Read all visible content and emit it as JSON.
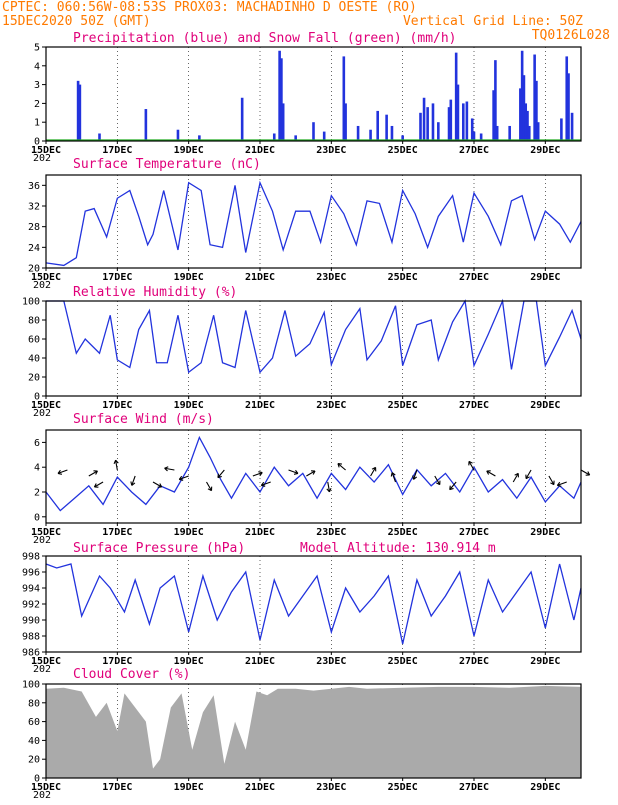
{
  "header": {
    "line1_left": "CPTEC:  060:56W-08:53S  PROX03: MACHADINHO D OESTE (RO)",
    "line2_left": "15DEC2020 50Z (GMT)",
    "line2_right": "Vertical Grid Line: 50Z",
    "line3_right": "TQ0126L028"
  },
  "colors": {
    "header": "#ff7a00",
    "title": "#e0007a",
    "series": "#2233dd",
    "snow": "#22aa22",
    "cloud": "#aaaaaa"
  },
  "x_axis": {
    "labels": [
      "15DEC",
      "17DEC",
      "19DEC",
      "21DEC",
      "23DEC",
      "25DEC",
      "27DEC",
      "29DEC"
    ],
    "sub_label": "202",
    "days": [
      15,
      17,
      19,
      21,
      23,
      25,
      27,
      29
    ],
    "range_days": [
      15,
      30
    ]
  },
  "chart_data": [
    {
      "type": "bar",
      "title": "Precipitation (blue) and Snow Fall (green) (mm/h)",
      "ylim": [
        0,
        5
      ],
      "yticks": [
        "0",
        "1",
        "2",
        "3",
        "4",
        "5"
      ],
      "series": [
        {
          "name": "Precipitation",
          "points": [
            [
              15.9,
              3.2
            ],
            [
              15.95,
              3.0
            ],
            [
              16.5,
              0.4
            ],
            [
              17.8,
              1.7
            ],
            [
              18.7,
              0.6
            ],
            [
              19.3,
              0.3
            ],
            [
              20.5,
              2.3
            ],
            [
              21.4,
              0.4
            ],
            [
              21.55,
              4.8
            ],
            [
              21.6,
              4.4
            ],
            [
              21.65,
              2.0
            ],
            [
              22.0,
              0.3
            ],
            [
              22.5,
              1.0
            ],
            [
              22.8,
              0.5
            ],
            [
              23.35,
              4.5
            ],
            [
              23.4,
              2.0
            ],
            [
              23.75,
              0.8
            ],
            [
              24.1,
              0.6
            ],
            [
              24.3,
              1.6
            ],
            [
              24.55,
              1.4
            ],
            [
              24.7,
              0.8
            ],
            [
              25.0,
              0.3
            ],
            [
              25.5,
              1.5
            ],
            [
              25.6,
              2.3
            ],
            [
              25.7,
              1.8
            ],
            [
              25.85,
              2.0
            ],
            [
              26.0,
              1.0
            ],
            [
              26.3,
              1.8
            ],
            [
              26.35,
              2.2
            ],
            [
              26.5,
              4.7
            ],
            [
              26.55,
              3.0
            ],
            [
              26.7,
              2.0
            ],
            [
              26.8,
              2.1
            ],
            [
              26.95,
              1.2
            ],
            [
              27.0,
              0.5
            ],
            [
              27.2,
              0.4
            ],
            [
              27.55,
              2.7
            ],
            [
              27.6,
              4.3
            ],
            [
              27.65,
              0.8
            ],
            [
              28.0,
              0.8
            ],
            [
              28.3,
              2.8
            ],
            [
              28.35,
              4.8
            ],
            [
              28.4,
              3.5
            ],
            [
              28.45,
              2.0
            ],
            [
              28.5,
              1.6
            ],
            [
              28.55,
              0.8
            ],
            [
              28.7,
              4.6
            ],
            [
              28.75,
              3.2
            ],
            [
              28.8,
              1.0
            ],
            [
              29.45,
              1.2
            ],
            [
              29.6,
              4.5
            ],
            [
              29.65,
              3.6
            ],
            [
              29.75,
              1.5
            ]
          ]
        },
        {
          "name": "Snow Fall",
          "points": []
        }
      ]
    },
    {
      "type": "line",
      "title": "Surface Temperature (nC)",
      "ylim": [
        20,
        38
      ],
      "yticks": [
        "20",
        "24",
        "28",
        "32",
        "36"
      ],
      "x": [
        15.0,
        15.5,
        15.85,
        16.1,
        16.35,
        16.7,
        17.0,
        17.35,
        17.6,
        17.85,
        18.0,
        18.3,
        18.7,
        19.0,
        19.35,
        19.6,
        19.95,
        20.3,
        20.6,
        21.0,
        21.35,
        21.65,
        22.0,
        22.4,
        22.7,
        23.0,
        23.35,
        23.7,
        24.0,
        24.35,
        24.7,
        25.0,
        25.35,
        25.7,
        26.0,
        26.4,
        26.7,
        27.0,
        27.4,
        27.75,
        28.05,
        28.35,
        28.7,
        29.0,
        29.4,
        29.7,
        30.0
      ],
      "y": [
        21.0,
        20.5,
        22.0,
        31.0,
        31.5,
        26.0,
        33.5,
        35.0,
        30.0,
        24.5,
        26.5,
        35.0,
        23.5,
        36.5,
        35.0,
        24.5,
        24.0,
        36.0,
        23.0,
        36.5,
        31.0,
        23.5,
        31.0,
        31.0,
        25.0,
        34.0,
        30.5,
        24.5,
        33.0,
        32.5,
        25.0,
        35.0,
        30.5,
        24.0,
        30.0,
        34.0,
        25.0,
        34.5,
        30.0,
        24.5,
        33.0,
        34.0,
        25.5,
        31.0,
        28.5,
        25.0,
        29.0
      ]
    },
    {
      "type": "line",
      "title": "Relative Humidity (%)",
      "ylim": [
        0,
        100
      ],
      "yticks": [
        "0",
        "20",
        "40",
        "60",
        "80",
        "100"
      ],
      "x": [
        15.0,
        15.5,
        15.85,
        16.1,
        16.5,
        16.8,
        17.0,
        17.35,
        17.6,
        17.9,
        18.1,
        18.4,
        18.7,
        19.0,
        19.35,
        19.7,
        19.95,
        20.3,
        20.6,
        21.0,
        21.35,
        21.7,
        22.0,
        22.4,
        22.8,
        23.0,
        23.4,
        23.8,
        24.0,
        24.4,
        24.8,
        25.0,
        25.4,
        25.8,
        26.0,
        26.4,
        26.75,
        27.0,
        27.4,
        27.8,
        28.05,
        28.4,
        28.75,
        29.0,
        29.4,
        29.75,
        30.0
      ],
      "y": [
        100,
        100,
        45,
        60,
        45,
        85,
        38,
        30,
        70,
        90,
        35,
        35,
        85,
        25,
        35,
        85,
        35,
        30,
        90,
        25,
        40,
        90,
        42,
        55,
        88,
        33,
        70,
        92,
        38,
        58,
        95,
        32,
        75,
        80,
        38,
        78,
        100,
        32,
        65,
        100,
        28,
        100,
        100,
        32,
        62,
        90,
        60
      ]
    },
    {
      "type": "line",
      "title": "Surface Wind (m/s)",
      "ylim": [
        -0.5,
        7
      ],
      "yticks": [
        "0",
        "2",
        "4",
        "6"
      ],
      "x": [
        15.0,
        15.4,
        15.8,
        16.2,
        16.6,
        17.0,
        17.4,
        17.8,
        18.2,
        18.6,
        19.0,
        19.3,
        19.6,
        19.9,
        20.2,
        20.6,
        21.0,
        21.4,
        21.8,
        22.2,
        22.6,
        23.0,
        23.4,
        23.8,
        24.2,
        24.6,
        25.0,
        25.4,
        25.8,
        26.2,
        26.6,
        27.0,
        27.4,
        27.8,
        28.2,
        28.6,
        29.0,
        29.4,
        29.8,
        30.0
      ],
      "y": [
        2.0,
        0.5,
        1.5,
        2.5,
        1.0,
        3.2,
        2.0,
        1.0,
        2.5,
        2.0,
        4.0,
        6.4,
        4.8,
        3.0,
        1.5,
        3.5,
        2.0,
        4.0,
        2.5,
        3.5,
        1.5,
        3.5,
        2.2,
        4.0,
        2.8,
        4.2,
        1.8,
        3.8,
        2.5,
        3.5,
        2.0,
        4.0,
        2.0,
        3.0,
        1.5,
        3.2,
        1.2,
        2.5,
        1.5,
        2.8
      ]
    },
    {
      "type": "line",
      "title": "Surface Pressure (hPa)",
      "annotation": "Model Altitude: 130.914  m",
      "ylim": [
        986,
        998
      ],
      "yticks": [
        "986",
        "988",
        "990",
        "992",
        "994",
        "996",
        "998"
      ],
      "x": [
        15.0,
        15.3,
        15.7,
        16.0,
        16.5,
        16.8,
        17.2,
        17.5,
        17.9,
        18.2,
        18.6,
        19.0,
        19.4,
        19.8,
        20.2,
        20.6,
        21.0,
        21.4,
        21.8,
        22.2,
        22.6,
        23.0,
        23.4,
        23.8,
        24.2,
        24.6,
        25.0,
        25.4,
        25.8,
        26.2,
        26.6,
        27.0,
        27.4,
        27.8,
        28.2,
        28.6,
        29.0,
        29.4,
        29.8,
        30.0
      ],
      "y": [
        997.0,
        996.5,
        997.0,
        990.5,
        995.5,
        994.0,
        991.0,
        995.0,
        989.5,
        994.0,
        995.5,
        988.5,
        995.5,
        990.0,
        993.5,
        996.0,
        987.5,
        995.0,
        990.5,
        993.0,
        995.5,
        988.5,
        994.0,
        991.0,
        993.0,
        995.5,
        987.0,
        995.0,
        990.5,
        993.0,
        996.0,
        988.0,
        995.0,
        991.0,
        993.5,
        996.0,
        989.0,
        997.0,
        990.0,
        994.0
      ]
    },
    {
      "type": "area",
      "title": "Cloud Cover (%)",
      "ylim": [
        0,
        100
      ],
      "yticks": [
        "0",
        "20",
        "40",
        "60",
        "80",
        "100"
      ],
      "x": [
        15.0,
        15.5,
        16.0,
        16.4,
        16.7,
        17.0,
        17.2,
        17.5,
        17.8,
        18.0,
        18.2,
        18.5,
        18.8,
        19.1,
        19.4,
        19.7,
        20.0,
        20.3,
        20.6,
        20.9,
        21.2,
        21.5,
        22.0,
        22.5,
        23.0,
        23.5,
        24.0,
        25.0,
        26.0,
        27.0,
        28.0,
        29.0,
        30.0
      ],
      "y": [
        95,
        96,
        92,
        65,
        80,
        50,
        90,
        75,
        60,
        10,
        20,
        75,
        90,
        30,
        70,
        88,
        15,
        60,
        30,
        92,
        88,
        95,
        95,
        93,
        95,
        97,
        95,
        96,
        97,
        97,
        96,
        98,
        97
      ]
    }
  ]
}
